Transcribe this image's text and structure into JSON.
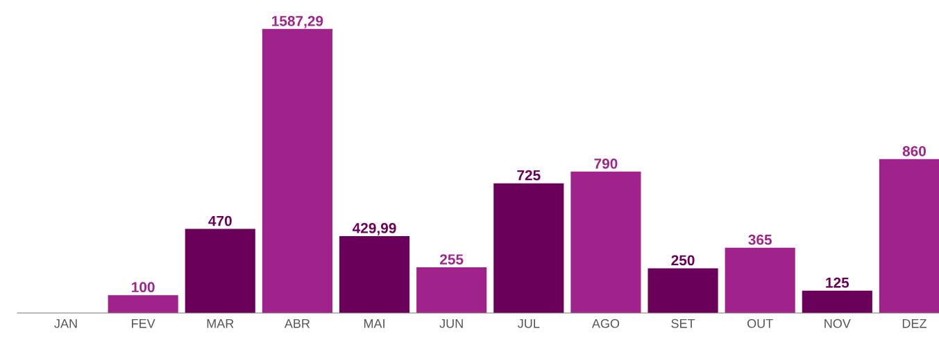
{
  "chart_data": {
    "type": "bar",
    "categories": [
      "JAN",
      "FEV",
      "MAR",
      "ABR",
      "MAI",
      "JUN",
      "JUL",
      "AGO",
      "SET",
      "OUT",
      "NOV",
      "DEZ"
    ],
    "values": [
      null,
      100,
      470,
      1587.29,
      429.99,
      255,
      725,
      790,
      250,
      365,
      125,
      860
    ],
    "value_labels": [
      null,
      "100",
      "470",
      "1587,29",
      "429,99",
      "255",
      "725",
      "790",
      "250",
      "365",
      "125",
      "860"
    ],
    "colors": [
      "#a0238c",
      "#a0238c",
      "#6b005a",
      "#a0238c",
      "#6b005a",
      "#a0238c",
      "#6b005a",
      "#a0238c",
      "#6b005a",
      "#a0238c",
      "#6b005a",
      "#a0238c"
    ],
    "grid": false,
    "legend": false
  }
}
